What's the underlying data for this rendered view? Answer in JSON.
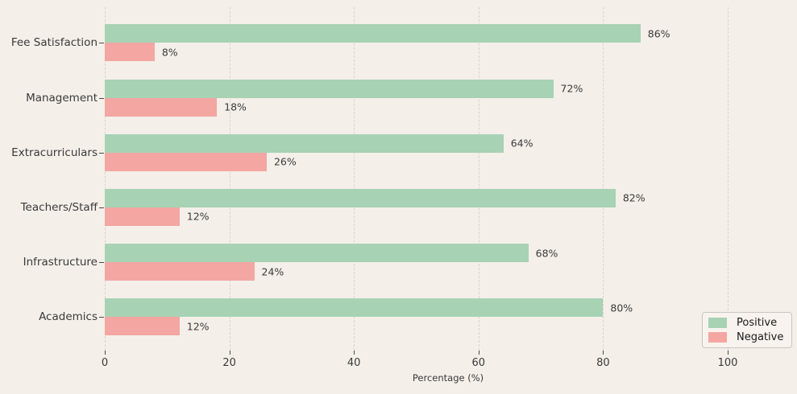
{
  "chart_data": {
    "type": "bar",
    "orientation": "horizontal",
    "title": "",
    "xlabel": "Percentage (%)",
    "ylabel": "",
    "categories": [
      "Fee Satisfaction",
      "Management",
      "Extracurriculars",
      "Teachers/Staff",
      "Infrastructure",
      "Academics"
    ],
    "series": [
      {
        "name": "Positive",
        "color": "#a7d2b4",
        "values": [
          86,
          72,
          64,
          82,
          68,
          80
        ],
        "labels": [
          "86%",
          "72%",
          "64%",
          "82%",
          "68%",
          "80%"
        ]
      },
      {
        "name": "Negative",
        "color": "#f4a6a2",
        "values": [
          8,
          18,
          26,
          12,
          24,
          12
        ],
        "labels": [
          "8%",
          "18%",
          "26%",
          "12%",
          "24%",
          "12%"
        ]
      }
    ],
    "x_ticks": [
      0,
      20,
      40,
      60,
      80,
      100
    ],
    "xlim": [
      0,
      110
    ],
    "grid": "vertical-dashed",
    "legend_position": "lower-right"
  },
  "legend": {
    "items": [
      {
        "label": "Positive",
        "color": "#a7d2b4"
      },
      {
        "label": "Negative",
        "color": "#f4a6a2"
      }
    ]
  },
  "colors": {
    "background": "#f4efe9",
    "text": "#3a3a3a",
    "grid": "#d7d3cd",
    "tick": "#4a4a4a",
    "legend_bg": "#f8f3ee",
    "legend_border": "#c9c5c0"
  }
}
